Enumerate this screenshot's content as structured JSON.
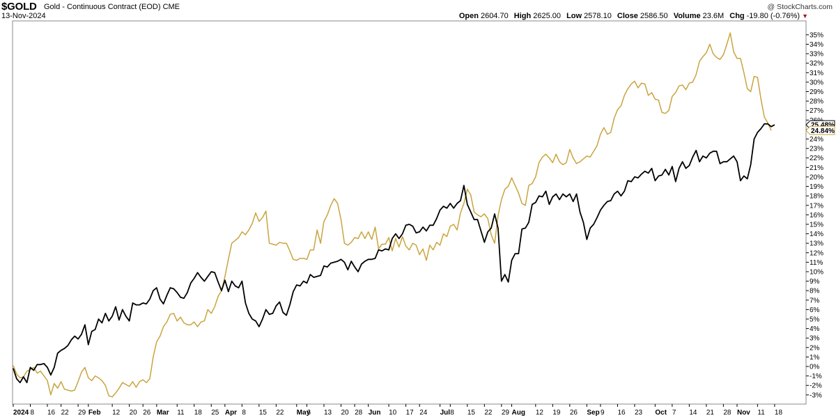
{
  "header": {
    "symbol": "$GOLD",
    "description": "Gold - Continuous Contract (EOD)",
    "exchange": "CME",
    "date": "13-Nov-2024",
    "open_label": "Open",
    "open": "2604.70",
    "high_label": "High",
    "high": "2625.00",
    "low_label": "Low",
    "low": "2578.10",
    "close_label": "Close",
    "close": "2586.50",
    "volume_label": "Volume",
    "volume": "23.6M",
    "chg_label": "Chg",
    "chg": "-19.80 (-0.76%)",
    "brand": "@ StockCharts.com"
  },
  "chart_data": {
    "type": "line",
    "title": "",
    "xlabel": "",
    "ylabel": "",
    "ylim": [
      -3.6,
      35.8
    ],
    "y_ticks": [
      -3,
      -2,
      -1,
      0,
      1,
      2,
      3,
      4,
      5,
      6,
      7,
      8,
      9,
      10,
      11,
      12,
      13,
      14,
      15,
      16,
      17,
      18,
      19,
      20,
      21,
      22,
      23,
      24,
      25,
      26,
      27,
      28,
      29,
      30,
      31,
      32,
      33,
      34,
      35
    ],
    "y_tick_suffix": "%",
    "y_axis_side": "right",
    "grid": false,
    "legend": "none",
    "x_ticks": [
      {
        "label": "2024",
        "x": 0.0,
        "bold": true
      },
      {
        "label": "8",
        "x": 5.0
      },
      {
        "label": "16",
        "x": 10.0
      },
      {
        "label": "22",
        "x": 14.0
      },
      {
        "label": "29",
        "x": 19.0
      },
      {
        "label": "Feb",
        "x": 22.0,
        "bold": true
      },
      {
        "label": "12",
        "x": 29.0
      },
      {
        "label": "20",
        "x": 34.0
      },
      {
        "label": "26",
        "x": 38.0
      },
      {
        "label": "Mar",
        "x": 42.0,
        "bold": true
      },
      {
        "label": "11",
        "x": 48.0
      },
      {
        "label": "18",
        "x": 53.0
      },
      {
        "label": "25",
        "x": 58.0
      },
      {
        "label": "Apr",
        "x": 62.0,
        "bold": true
      },
      {
        "label": "8",
        "x": 67.0
      },
      {
        "label": "15",
        "x": 72.0
      },
      {
        "label": "22",
        "x": 77.0
      },
      {
        "label": "May",
        "x": 83.0,
        "bold": true
      },
      {
        "label": "6",
        "x": 86.0
      },
      {
        "label": "13",
        "x": 91.0
      },
      {
        "label": "20",
        "x": 96.0
      },
      {
        "label": "28",
        "x": 100.0
      },
      {
        "label": "Jun",
        "x": 104.0,
        "bold": true
      },
      {
        "label": "10",
        "x": 110.0
      },
      {
        "label": "17",
        "x": 115.0
      },
      {
        "label": "24",
        "x": 119.0
      },
      {
        "label": "Jul",
        "x": 125.0,
        "bold": true
      },
      {
        "label": "8",
        "x": 128.0
      },
      {
        "label": "15",
        "x": 133.0
      },
      {
        "label": "22",
        "x": 138.0
      },
      {
        "label": "29",
        "x": 143.0
      },
      {
        "label": "Aug",
        "x": 146.0,
        "bold": true
      },
      {
        "label": "12",
        "x": 153.0
      },
      {
        "label": "19",
        "x": 158.0
      },
      {
        "label": "26",
        "x": 163.0
      },
      {
        "label": "Sep",
        "x": 168.0,
        "bold": true
      },
      {
        "label": "9",
        "x": 172.0
      },
      {
        "label": "16",
        "x": 177.0
      },
      {
        "label": "23",
        "x": 182.0
      },
      {
        "label": "Oct",
        "x": 188.0,
        "bold": true
      },
      {
        "label": "7",
        "x": 193.0
      },
      {
        "label": "14",
        "x": 198.0
      },
      {
        "label": "21",
        "x": 203.0
      },
      {
        "label": "28",
        "x": 208.0
      },
      {
        "label": "Nov",
        "x": 212.0,
        "bold": true
      },
      {
        "label": "11",
        "x": 218.0
      },
      {
        "label": "18",
        "x": 223.0
      }
    ],
    "series": [
      {
        "color": "#000000",
        "end_label": "25.48%",
        "values": [
          -0.2,
          -1.3,
          -1.7,
          -1.1,
          -1.7,
          -0.1,
          -0.4,
          0.2,
          0.2,
          0.3,
          -0.1,
          -0.9,
          -0.1,
          1.4,
          1.7,
          1.9,
          2.2,
          2.8,
          3.2,
          2.9,
          3.4,
          4.4,
          2.3,
          3.7,
          3.9,
          5.0,
          4.6,
          5.6,
          4.8,
          5.3,
          6.3,
          4.9,
          6.0,
          5.3,
          4.8,
          6.7,
          6.5,
          6.5,
          6.7,
          6.6,
          7.1,
          8.0,
          8.3,
          7.1,
          6.6,
          7.5,
          8.3,
          8.2,
          7.8,
          7.3,
          7.2,
          7.8,
          8.8,
          9.3,
          9.9,
          9.4,
          9.0,
          9.5,
          10.0,
          9.9,
          8.9,
          8.0,
          9.1,
          7.9,
          9.0,
          8.5,
          8.3,
          9.0,
          6.7,
          5.6,
          5.0,
          4.8,
          4.2,
          5.0,
          6.0,
          5.5,
          5.6,
          6.4,
          6.8,
          5.7,
          5.4,
          6.5,
          7.9,
          8.6,
          8.5,
          9.0,
          8.8,
          9.7,
          9.4,
          9.5,
          9.6,
          10.6,
          10.5,
          10.9,
          11.0,
          11.1,
          11.3,
          11.0,
          10.2,
          11.1,
          10.5,
          10.0,
          10.8,
          11.1,
          11.3,
          11.3,
          11.4,
          12.3,
          12.2,
          12.4,
          12.3,
          13.5,
          14.0,
          13.5,
          14.0,
          14.9,
          15.0,
          14.8,
          14.1,
          14.2,
          14.7,
          14.3,
          14.9,
          14.9,
          15.6,
          16.5,
          16.9,
          16.7,
          17.2,
          16.7,
          17.2,
          17.5,
          19.1,
          17.1,
          16.3,
          15.5,
          15.5,
          14.3,
          13.1,
          14.2,
          14.6,
          16.1,
          14.6,
          9.0,
          9.7,
          8.9,
          11.2,
          11.9,
          11.9,
          14.5,
          14.6,
          15.2,
          17.1,
          17.3,
          18.0,
          17.9,
          18.5,
          17.1,
          17.9,
          18.2,
          17.6,
          18.2,
          17.9,
          18.2,
          17.4,
          18.2,
          16.3,
          15.2,
          13.4,
          14.6,
          15.0,
          15.7,
          16.5,
          17.0,
          17.4,
          17.5,
          18.2,
          18.5,
          18.0,
          18.5,
          19.6,
          19.5,
          20.0,
          19.9,
          20.3,
          20.6,
          20.4,
          20.9,
          19.6,
          20.1,
          20.2,
          20.8,
          20.2,
          21.1,
          19.5,
          20.9,
          21.6,
          20.9,
          21.2,
          22.1,
          22.8,
          21.6,
          22.2,
          22.0,
          22.5,
          22.7,
          22.7,
          21.4,
          21.6,
          21.6,
          21.9,
          22.2,
          21.6,
          19.6,
          20.1,
          19.8,
          21.3,
          24.0,
          24.7,
          25.1,
          25.6,
          25.6,
          25.3,
          25.5
        ]
      },
      {
        "color": "#c9a43e",
        "end_label": "24.84%",
        "values": [
          0.1,
          -0.8,
          -1.2,
          -1.1,
          -0.5,
          -0.3,
          -0.1,
          -0.7,
          -0.5,
          -1.0,
          -1.5,
          -3.0,
          -1.8,
          -2.3,
          -1.6,
          -2.4,
          -2.5,
          -2.6,
          -2.5,
          -1.6,
          -0.6,
          -0.1,
          -1.2,
          -1.5,
          -1.0,
          -1.2,
          -1.5,
          -2.0,
          -3.1,
          -3.2,
          -2.8,
          -2.3,
          -1.7,
          -1.9,
          -2.1,
          -1.6,
          -2.2,
          -1.6,
          -1.4,
          -1.7,
          -1.3,
          1.0,
          2.6,
          3.2,
          4.2,
          4.7,
          5.5,
          5.6,
          4.8,
          5.2,
          4.6,
          4.4,
          4.4,
          4.7,
          4.2,
          4.7,
          4.8,
          6.0,
          5.6,
          6.3,
          7.4,
          8.0,
          9.5,
          11.3,
          13.0,
          13.3,
          13.6,
          14.2,
          13.9,
          14.4,
          15.1,
          16.2,
          15.3,
          15.7,
          16.4,
          13.0,
          12.9,
          12.8,
          13.1,
          13.0,
          13.0,
          12.2,
          11.3,
          11.2,
          11.4,
          11.4,
          11.3,
          12.3,
          12.3,
          14.4,
          13.0,
          15.3,
          16.0,
          17.0,
          17.7,
          17.2,
          15.5,
          13.0,
          12.8,
          13.1,
          13.6,
          13.5,
          14.2,
          13.5,
          14.2,
          13.4,
          14.7,
          12.4,
          12.9,
          12.9,
          13.6,
          12.2,
          13.5,
          12.6,
          13.7,
          12.7,
          12.3,
          13.0,
          12.8,
          11.8,
          12.4,
          11.2,
          12.8,
          12.3,
          13.1,
          12.8,
          14.0,
          13.7,
          14.8,
          15.0,
          14.4,
          16.2,
          17.2,
          18.7,
          18.1,
          16.3,
          16.0,
          15.8,
          16.1,
          15.6,
          13.9,
          13.0,
          15.9,
          17.6,
          18.7,
          19.0,
          19.9,
          19.1,
          18.3,
          17.2,
          17.0,
          19.1,
          19.3,
          20.0,
          21.5,
          22.1,
          22.4,
          22.0,
          21.5,
          22.4,
          21.6,
          21.3,
          21.5,
          22.9,
          22.0,
          21.4,
          21.6,
          21.9,
          22.2,
          22.1,
          22.7,
          23.3,
          24.5,
          25.2,
          24.5,
          24.7,
          26.2,
          27.1,
          27.5,
          28.6,
          29.3,
          29.8,
          30.1,
          29.4,
          29.9,
          29.8,
          28.6,
          28.9,
          28.2,
          28.1,
          26.8,
          26.7,
          27.0,
          28.5,
          28.9,
          29.6,
          29.7,
          29.2,
          29.9,
          30.0,
          30.8,
          32.2,
          32.7,
          33.1,
          34.0,
          33.0,
          32.6,
          32.4,
          32.9,
          34.0,
          35.2,
          33.2,
          32.5,
          32.5,
          31.0,
          29.3,
          29.0,
          30.6,
          30.5,
          28.2,
          26.3,
          25.7,
          24.9
        ]
      }
    ]
  }
}
